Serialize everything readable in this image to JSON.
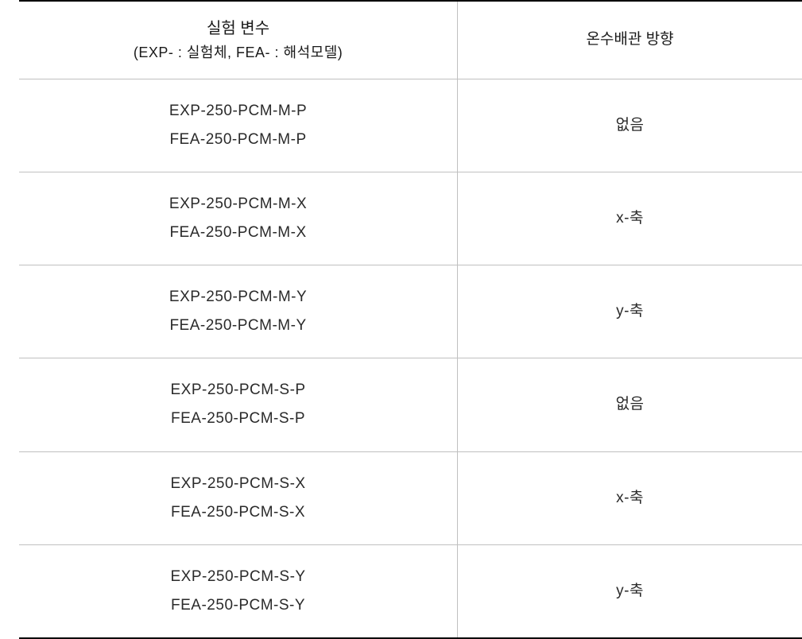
{
  "table": {
    "columns": [
      {
        "main": "실험 변수",
        "sub": "(EXP- : 실험체, FEA- : 해석모델)"
      },
      {
        "main": "온수배관 방향"
      }
    ],
    "col_widths_pct": [
      56,
      44
    ],
    "border_top_color": "#000000",
    "border_top_width": 2,
    "border_bottom_color": "#000000",
    "border_bottom_width": 2,
    "divider_color": "#c0c0c0",
    "divider_width": 1,
    "header_fontsize_main": 20,
    "header_fontsize_sub": 18,
    "cell_fontsize": 19,
    "text_color": "#2a2a2a",
    "background_color": "#ffffff",
    "rows": [
      {
        "variable_lines": [
          "EXP-250-PCM-M-P",
          "FEA-250-PCM-M-P"
        ],
        "direction": "없음"
      },
      {
        "variable_lines": [
          "EXP-250-PCM-M-X",
          "FEA-250-PCM-M-X"
        ],
        "direction": "x-축"
      },
      {
        "variable_lines": [
          "EXP-250-PCM-M-Y",
          "FEA-250-PCM-M-Y"
        ],
        "direction": "y-축"
      },
      {
        "variable_lines": [
          "EXP-250-PCM-S-P",
          "FEA-250-PCM-S-P"
        ],
        "direction": "없음"
      },
      {
        "variable_lines": [
          "EXP-250-PCM-S-X",
          "FEA-250-PCM-S-X"
        ],
        "direction": "x-축"
      },
      {
        "variable_lines": [
          "EXP-250-PCM-S-Y",
          "FEA-250-PCM-S-Y"
        ],
        "direction": "y-축"
      }
    ]
  }
}
